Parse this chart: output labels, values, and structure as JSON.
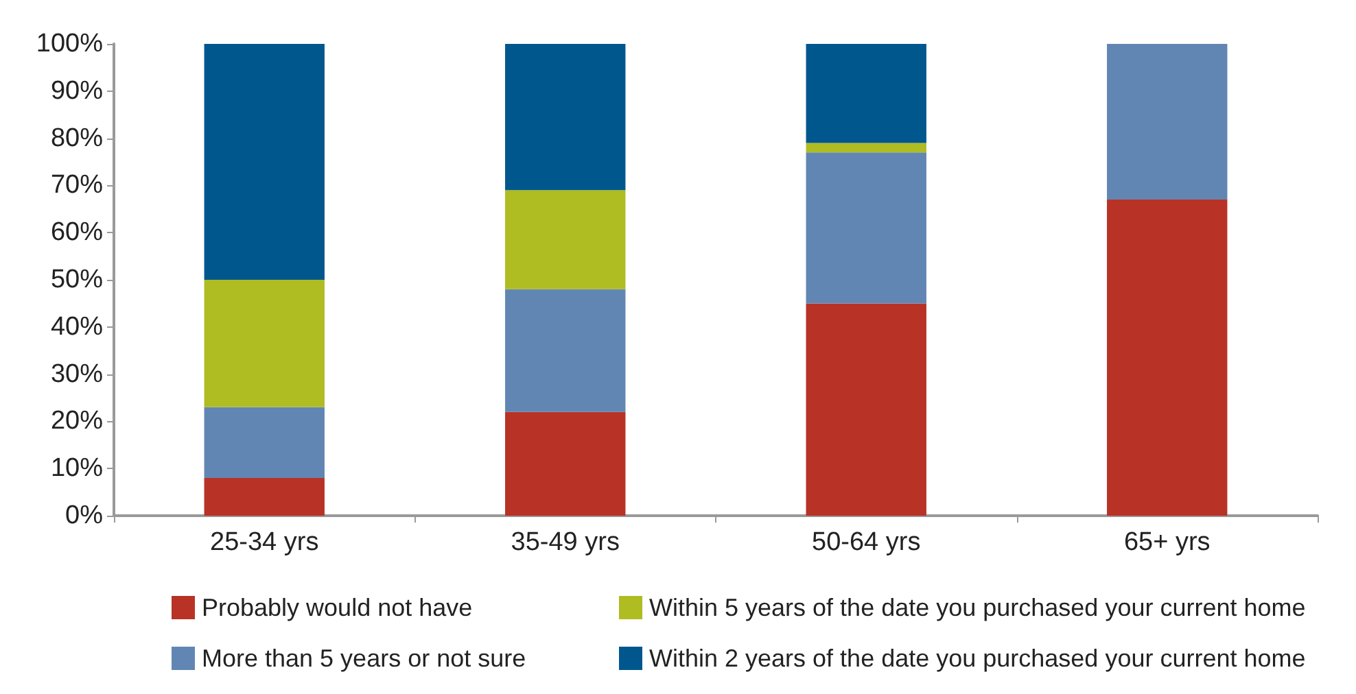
{
  "chart_data": {
    "type": "bar",
    "stacked": true,
    "categories": [
      "25-34 yrs",
      "35-49 yrs",
      "50-64 yrs",
      "65+ yrs"
    ],
    "series": [
      {
        "name": "Probably would not have",
        "color": "#b83226",
        "values": [
          8,
          22,
          45,
          67
        ]
      },
      {
        "name": "More than 5 years or not sure",
        "color": "#6286b3",
        "values": [
          15,
          26,
          32,
          33
        ]
      },
      {
        "name": "Within 5 years of the date you purchased your current home",
        "color": "#afbc22",
        "values": [
          27,
          21,
          2,
          0
        ]
      },
      {
        "name": "Within 2 years of the date you purchased your current home",
        "color": "#00578e",
        "values": [
          50,
          31,
          21,
          0
        ]
      }
    ],
    "ylim": [
      0,
      100
    ],
    "yticks": [
      {
        "value": 0,
        "label": "0%"
      },
      {
        "value": 10,
        "label": "10%"
      },
      {
        "value": 20,
        "label": "20%"
      },
      {
        "value": 30,
        "label": "30%"
      },
      {
        "value": 40,
        "label": "40%"
      },
      {
        "value": 50,
        "label": "50%"
      },
      {
        "value": 60,
        "label": "60%"
      },
      {
        "value": 70,
        "label": "70%"
      },
      {
        "value": 80,
        "label": "80%"
      },
      {
        "value": 90,
        "label": "90%"
      },
      {
        "value": 100,
        "label": "100%"
      }
    ],
    "grid": false,
    "legend": "bottom"
  }
}
